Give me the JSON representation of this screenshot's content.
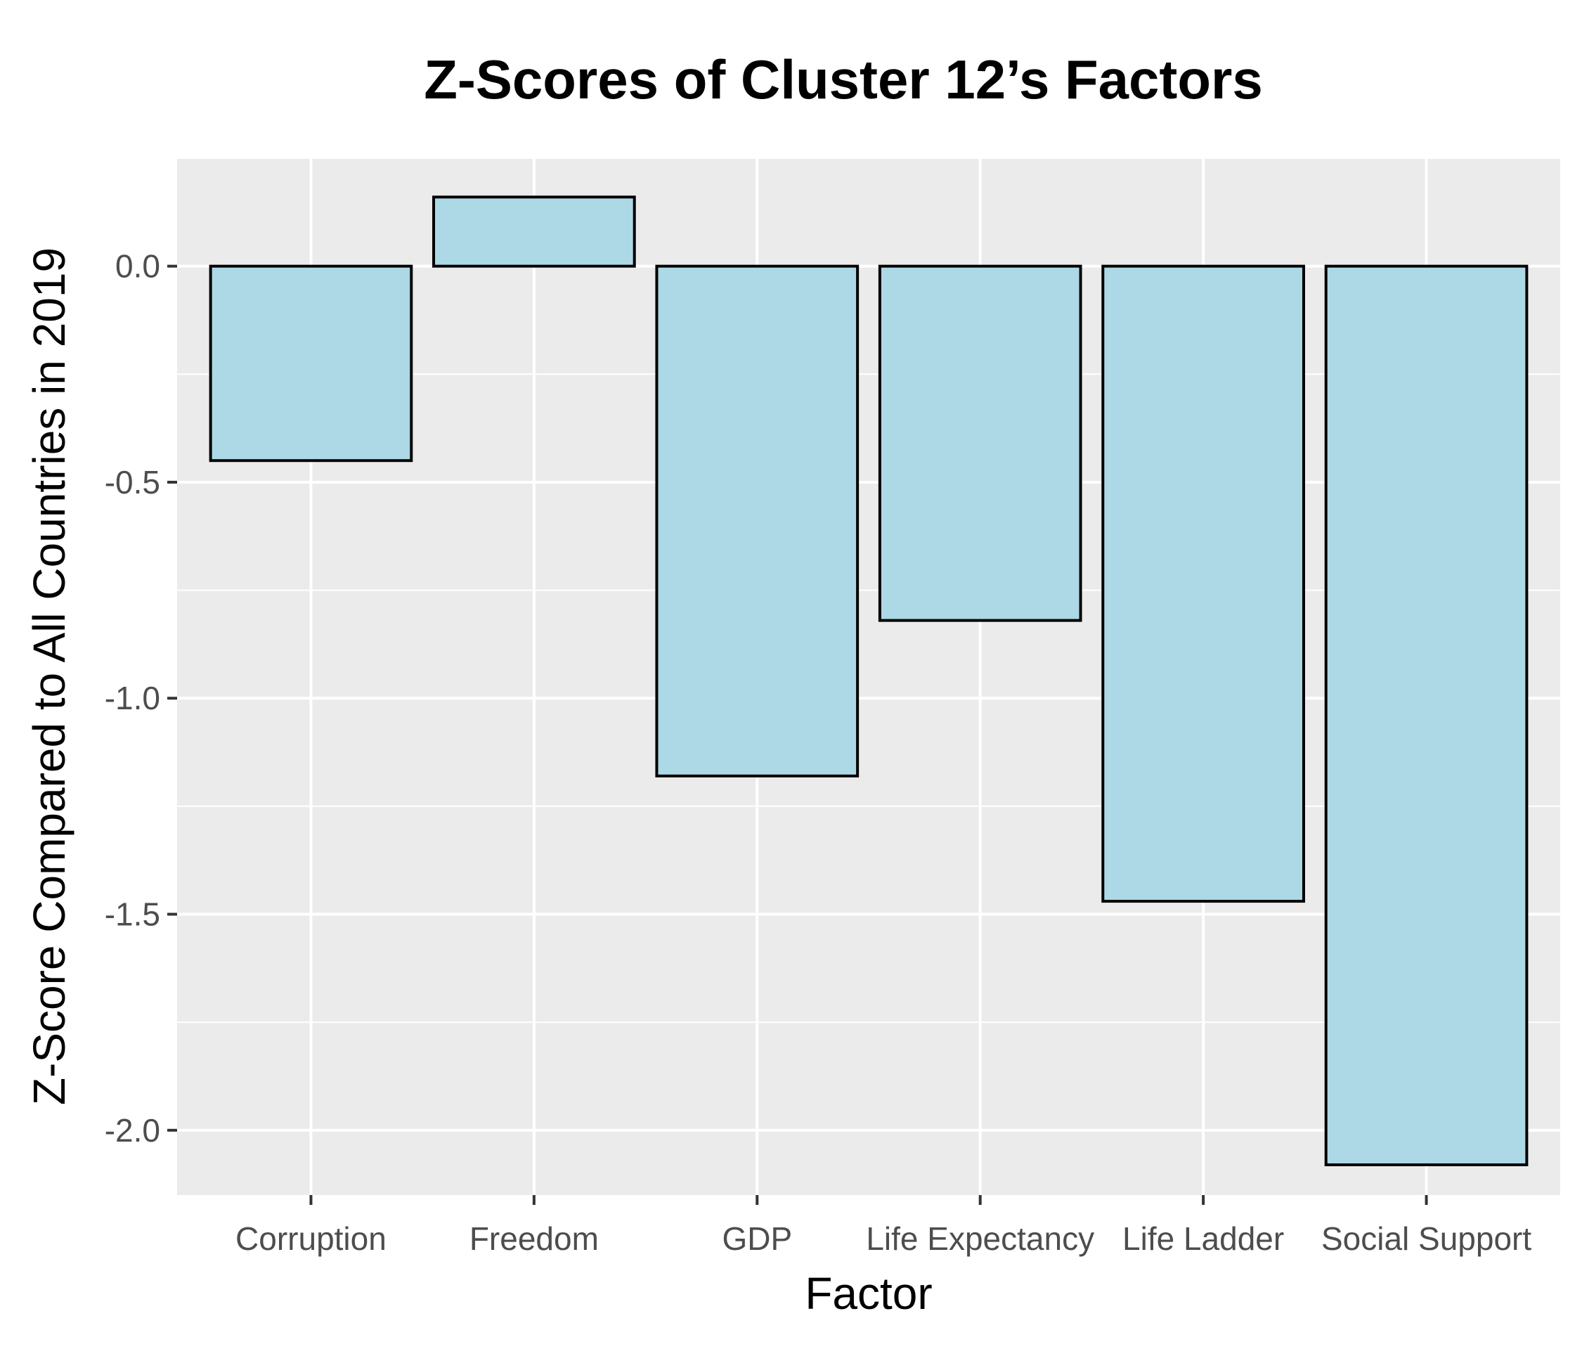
{
  "chart_data": {
    "type": "bar",
    "title": "Z-Scores of Cluster 12’s Factors",
    "xlabel": "Factor",
    "ylabel": "Z-Score Compared to All Countries in 2019",
    "categories": [
      "Corruption",
      "Freedom",
      "GDP",
      "Life Expectancy",
      "Life Ladder",
      "Social Support"
    ],
    "values": [
      -0.45,
      0.16,
      -1.18,
      -0.82,
      -1.47,
      -2.08
    ],
    "ylim": [
      -2.15,
      0.25
    ],
    "yticks": [
      0.0,
      -0.5,
      -1.0,
      -1.5,
      -2.0
    ],
    "ytick_labels": [
      "0.0",
      "-0.5",
      "-1.0",
      "-1.5",
      "-2.0"
    ],
    "grid": true,
    "legend": "none",
    "colors": {
      "bar_fill": "#add8e6",
      "bar_stroke": "#000000",
      "panel_bg": "#ebebeb",
      "grid": "#ffffff"
    }
  }
}
